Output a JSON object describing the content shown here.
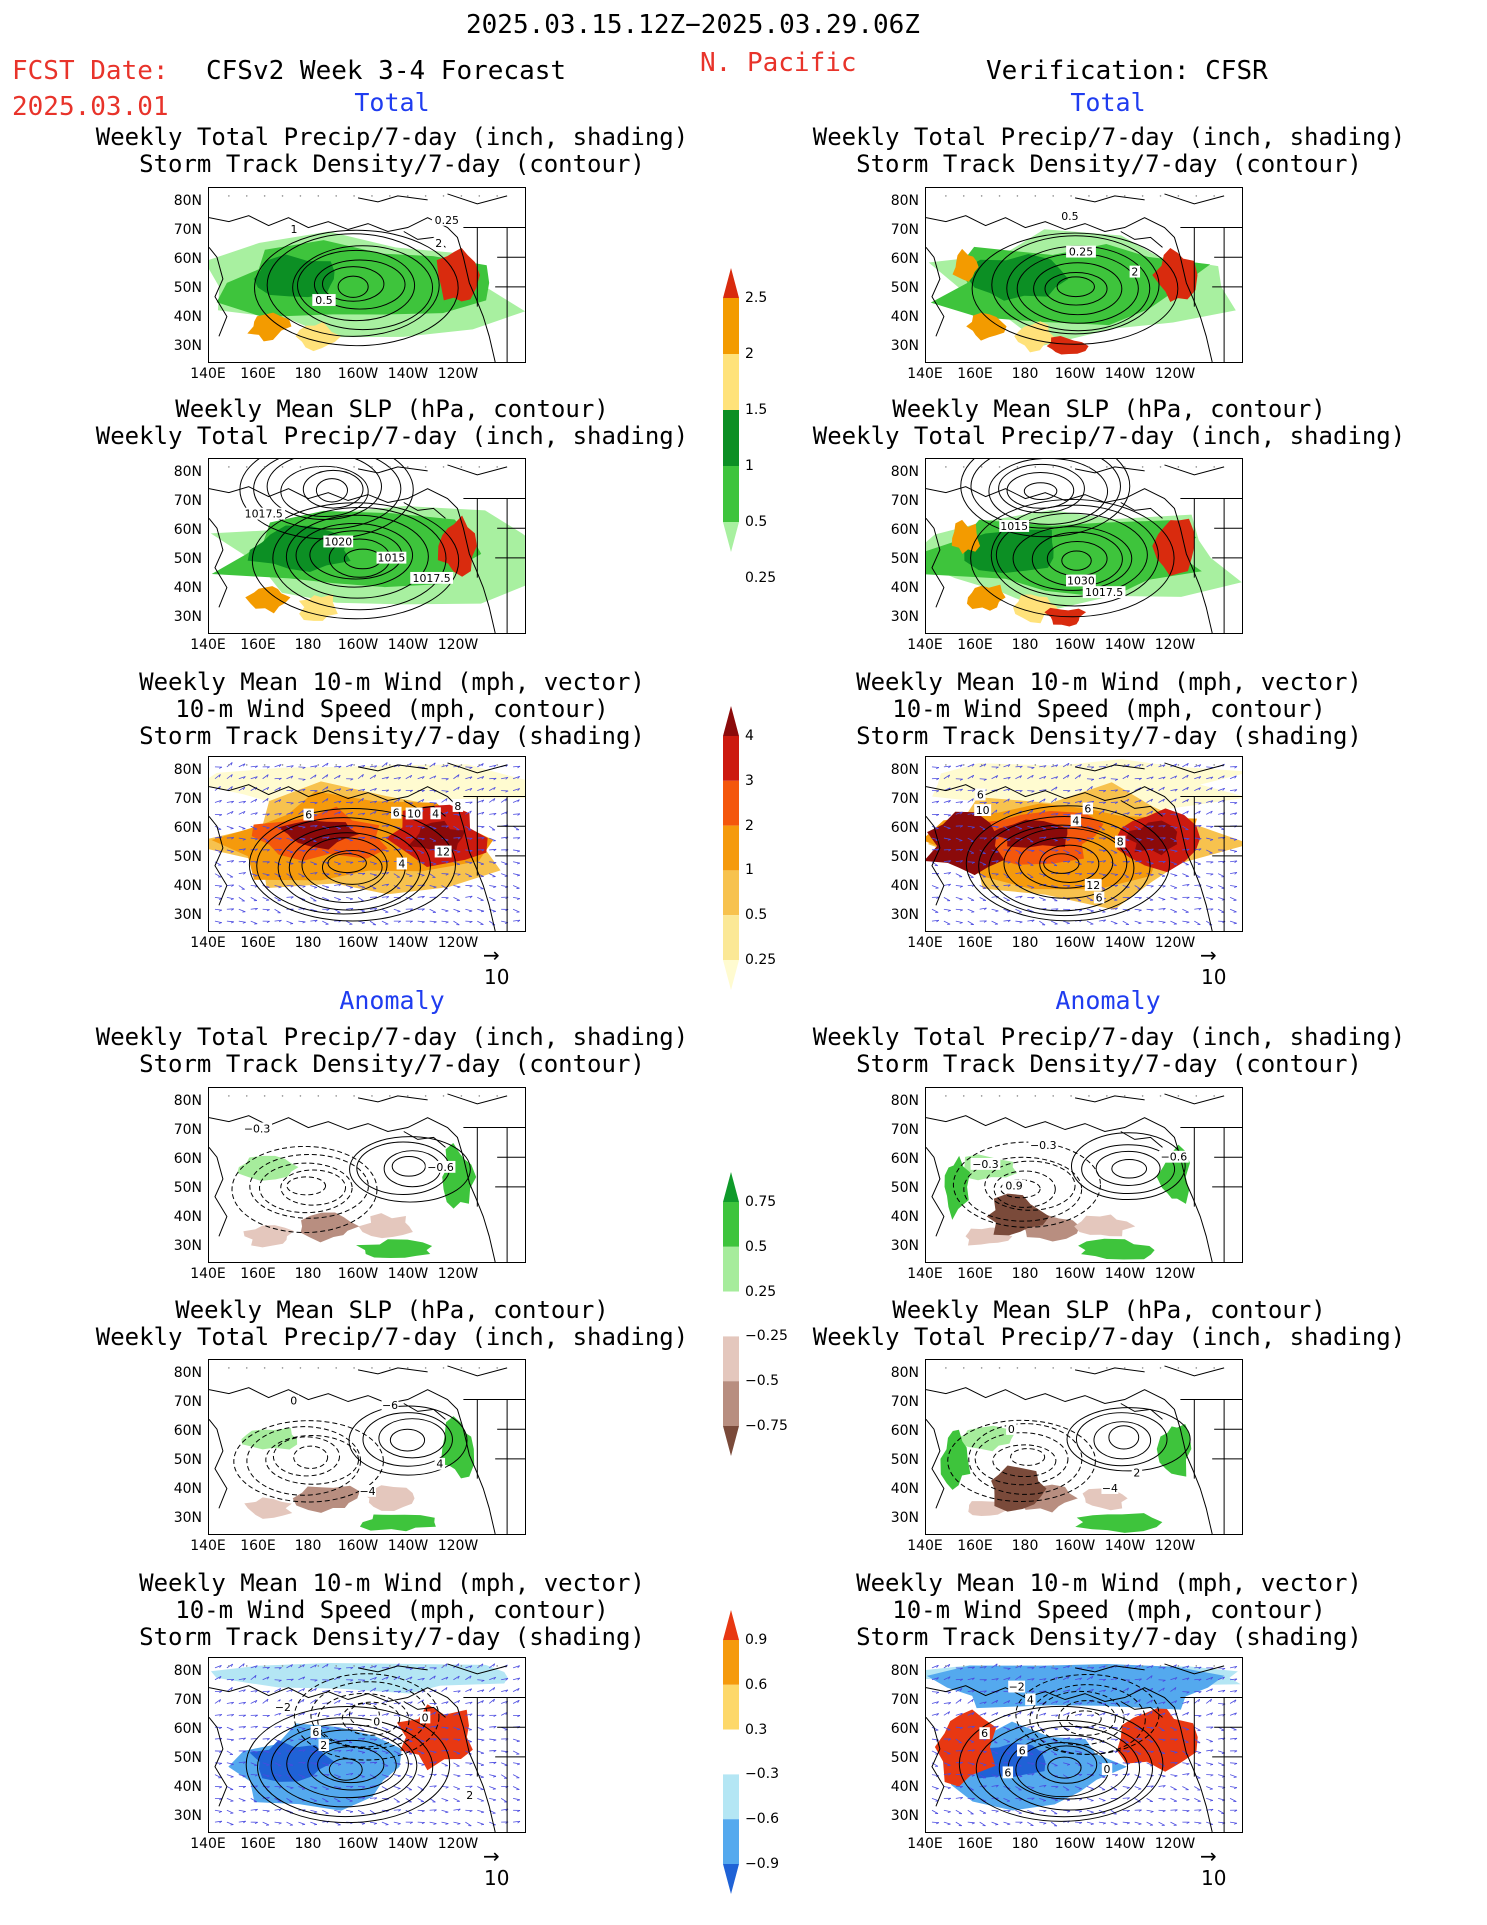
{
  "header": {
    "period": "2025.03.15.12Z−2025.03.29.06Z",
    "fcst_label": "FCST Date:",
    "fcst_date": "2025.03.01",
    "model_title": "CFSv2 Week 3-4 Forecast",
    "region": "N. Pacific",
    "verification": "Verification: CFSR"
  },
  "sections": {
    "total": "Total",
    "anomaly": "Anomaly"
  },
  "panel_titles": {
    "precip_track": [
      "Weekly Total Precip/7-day (inch, shading)",
      "Storm Track Density/7-day (contour)"
    ],
    "slp_precip": [
      "Weekly Mean SLP (hPa, contour)",
      "Weekly Total Precip/7-day (inch, shading)"
    ],
    "wind_track": [
      "Weekly Mean 10-m Wind (mph, vector)",
      "10-m Wind Speed (mph, contour)",
      "Storm Track Density/7-day (shading)"
    ]
  },
  "axes": {
    "lat_labels": [
      "80N",
      "70N",
      "60N",
      "50N",
      "40N",
      "30N"
    ],
    "lon_labels": [
      "140E",
      "160E",
      "180",
      "160W",
      "140W",
      "120W"
    ]
  },
  "vector_ref": "10",
  "colorbars": {
    "precip_total": {
      "labels": [
        "2.5",
        "2",
        "1.5",
        "1",
        "0.5",
        "0.25"
      ],
      "colors": [
        "#d92b0e",
        "#f39b00",
        "#ffe27a",
        "#0c8f24",
        "#3ec43c",
        "#a8f0a0"
      ]
    },
    "track_total": {
      "labels": [
        "4",
        "3",
        "2",
        "1",
        "0.5",
        "0.25"
      ],
      "colors": [
        "#8b0a0a",
        "#cc1a0f",
        "#f4570c",
        "#f59a0c",
        "#f7c24e",
        "#fbe896",
        "#fffbd0"
      ]
    },
    "precip_anom": {
      "labels": [
        "0.75",
        "0.5",
        "0.25",
        "−0.25",
        "−0.5",
        "−0.75"
      ],
      "colors": [
        "#0f9a2a",
        "#3ec43c",
        "#a6ec9c",
        "#ffffff",
        "#e4c7bd",
        "#b88e80",
        "#7a4a3a"
      ]
    },
    "track_anom": {
      "labels": [
        "0.9",
        "0.6",
        "0.3",
        "−0.3",
        "−0.6",
        "−0.9"
      ],
      "colors": [
        "#e83812",
        "#f59a0c",
        "#fdd86a",
        "#ffffff",
        "#b4e6f4",
        "#54a9ee",
        "#1f62d6"
      ]
    }
  },
  "contour_labels": {
    "fc_total_precip": [
      "2",
      "1",
      "0.5",
      "0.25"
    ],
    "vf_total_precip": [
      "2",
      "0.5",
      "0.25"
    ],
    "fc_total_slp": [
      "1017.5",
      "1020",
      "1015",
      "1017.5"
    ],
    "vf_total_slp": [
      "1030",
      "1017.5",
      "1015"
    ],
    "fc_total_wind": [
      "4",
      "10",
      "12",
      "8",
      "6",
      "6",
      "4"
    ],
    "vf_total_wind": [
      "8",
      "10",
      "6",
      "6",
      "6",
      "12",
      "4"
    ],
    "fc_anom_precip": [
      "−0.3",
      "−0.6"
    ],
    "vf_anom_precip": [
      "−0.3",
      "−0.6",
      "−0.3",
      "0.9"
    ],
    "fc_anom_slp": [
      "4",
      "0",
      "−6",
      "−4"
    ],
    "vf_anom_slp": [
      "0",
      "2",
      "−4"
    ],
    "fc_anom_wind": [
      "2",
      "0",
      "2",
      "−2",
      "6",
      "0"
    ],
    "vf_anom_wind": [
      "6",
      "4",
      "6",
      "0",
      "−2",
      "6"
    ]
  }
}
